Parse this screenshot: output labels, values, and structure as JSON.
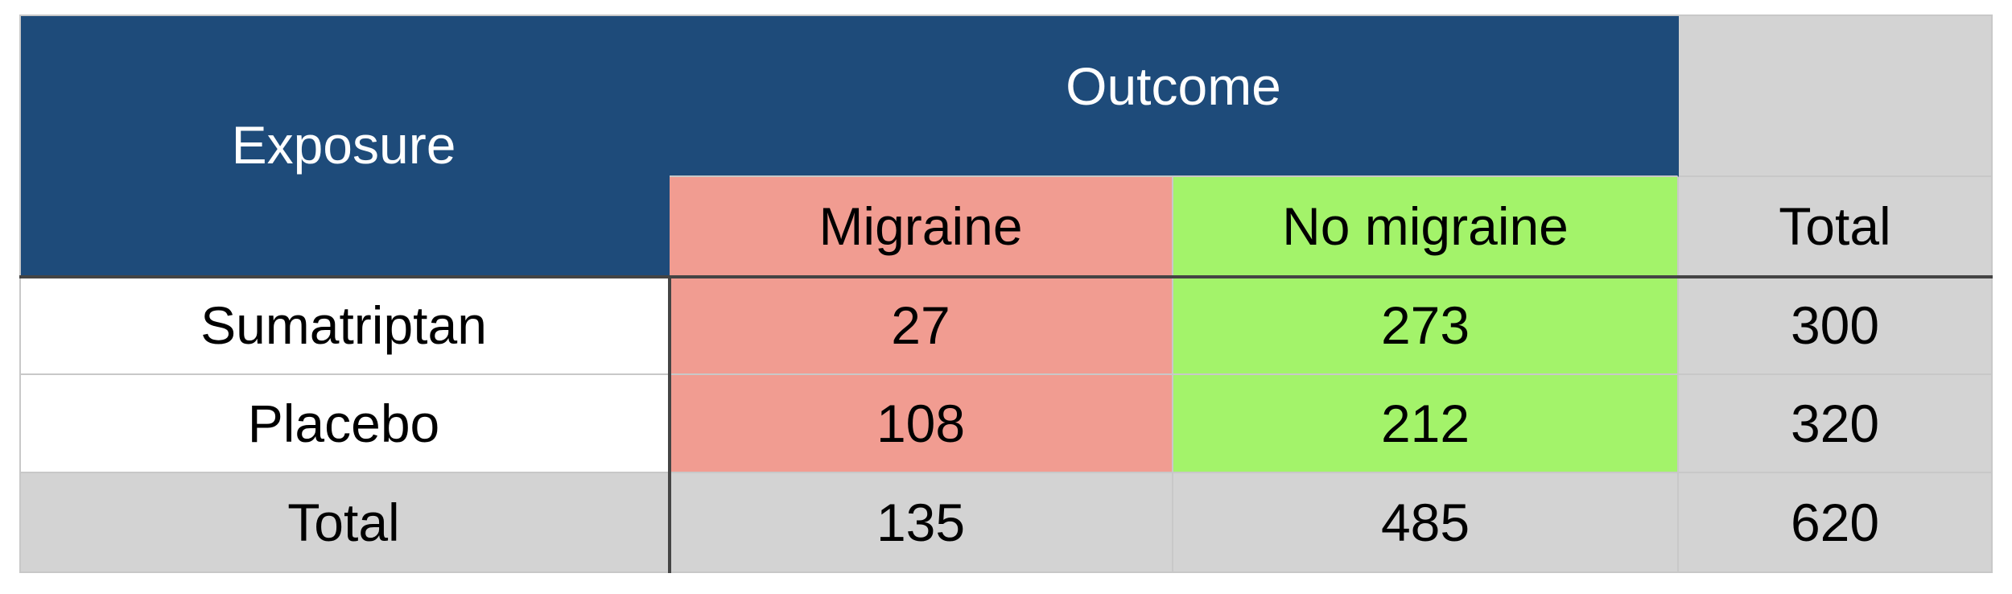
{
  "table": {
    "header": {
      "exposure_label": "Exposure",
      "outcome_label": "Outcome",
      "col_migraine": "Migraine",
      "col_no_migraine": "No migraine",
      "col_total": "Total"
    },
    "rows": [
      {
        "label": "Sumatriptan",
        "migraine": "27",
        "no_migraine": "273",
        "total": "300"
      },
      {
        "label": "Placebo",
        "migraine": "108",
        "no_migraine": "212",
        "total": "320"
      }
    ],
    "totals": {
      "label": "Total",
      "migraine": "135",
      "no_migraine": "485",
      "total": "620"
    }
  },
  "colors": {
    "header_blue": "#1e4b7a",
    "migraine_pink": "#f19c91",
    "no_migraine_green": "#a3f36a",
    "total_gray": "#d3d3d3"
  }
}
